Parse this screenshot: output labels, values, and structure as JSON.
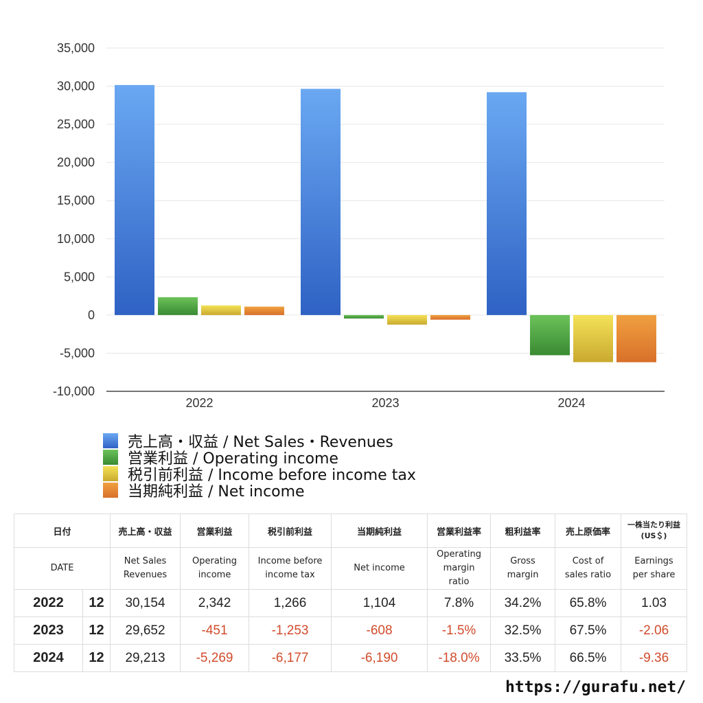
{
  "chart_data": {
    "type": "bar",
    "categories": [
      "2022",
      "2023",
      "2024"
    ],
    "series": [
      {
        "name": "売上高・収益 / Net Sales・Revenues",
        "values": [
          30154,
          29652,
          29213
        ],
        "color": "#3f7fdc"
      },
      {
        "name": "営業利益 / Operating income",
        "values": [
          2342,
          -451,
          -5269
        ],
        "color": "#4a9a3c"
      },
      {
        "name": "税引前利益 / Income before income tax",
        "values": [
          1266,
          -1253,
          -6177
        ],
        "color": "#d8c23a"
      },
      {
        "name": "当期純利益 / Net income",
        "values": [
          1104,
          -608,
          -6190
        ],
        "color": "#e07a30"
      }
    ],
    "ylim": [
      -10000,
      35000
    ],
    "yticks": [
      35000,
      30000,
      25000,
      20000,
      15000,
      10000,
      5000,
      0,
      -5000,
      -10000
    ],
    "ytick_labels": [
      "35,000",
      "30,000",
      "25,000",
      "20,000",
      "15,000",
      "10,000",
      "5,000",
      "0",
      "-5,000",
      "-10,000"
    ],
    "grid": true,
    "legend_position": "bottom-left"
  },
  "table": {
    "headers_jp": [
      "日付",
      "売上高・収益",
      "営業利益",
      "税引前利益",
      "当期純利益",
      "営業利益率",
      "粗利益率",
      "売上原価率",
      "一株当たり利益\n(US＄)"
    ],
    "headers_en": [
      "DATE",
      "Net Sales\nRevenues",
      "Operating\nincome",
      "Income before\nincome tax",
      "Net income",
      "Operating\nmargin\nratio",
      "Gross\nmargin",
      "Cost of\nsales ratio",
      "Earnings\nper share"
    ],
    "rows": [
      {
        "year": "2022",
        "month": "12",
        "values": [
          "30,154",
          "2,342",
          "1,266",
          "1,104",
          "7.8%",
          "34.2%",
          "65.8%",
          "1.03"
        ]
      },
      {
        "year": "2023",
        "month": "12",
        "values": [
          "29,652",
          "-451",
          "-1,253",
          "-608",
          "-1.5%",
          "32.5%",
          "67.5%",
          "-2.06"
        ]
      },
      {
        "year": "2024",
        "month": "12",
        "values": [
          "29,213",
          "-5,269",
          "-6,177",
          "-6,190",
          "-18.0%",
          "33.5%",
          "66.5%",
          "-9.36"
        ]
      }
    ]
  },
  "footer": {
    "site": "https://gurafu.net/"
  }
}
